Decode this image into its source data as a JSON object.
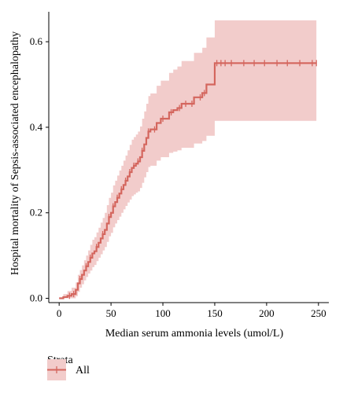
{
  "chart_data": {
    "type": "step",
    "title": "",
    "xlabel": "Median serum ammonia levels (umol/L)",
    "ylabel": "Hospital mortality of Sepsis-associated encephalopathy",
    "xlim": [
      -10,
      260
    ],
    "ylim": [
      -0.01,
      0.67
    ],
    "x_ticks": [
      0,
      50,
      100,
      150,
      200,
      250
    ],
    "x_tick_labels": [
      "0",
      "50",
      "100",
      "150",
      "200",
      "250"
    ],
    "y_ticks": [
      0.0,
      0.2,
      0.4,
      0.6
    ],
    "y_tick_labels": [
      "0.0",
      "0.2",
      "0.4",
      "0.6"
    ],
    "grid": false,
    "legend": {
      "title": "Strata",
      "placement": "bottom-left",
      "entries": [
        "All"
      ]
    },
    "colors": {
      "line": "#d4665e",
      "band": "#f2cccb"
    },
    "series": [
      {
        "name": "All",
        "x": [
          0,
          4,
          8,
          12,
          16,
          18,
          20,
          22,
          24,
          26,
          28,
          30,
          32,
          34,
          36,
          38,
          40,
          42,
          44,
          46,
          48,
          50,
          52,
          54,
          56,
          58,
          60,
          62,
          64,
          66,
          68,
          70,
          72,
          74,
          76,
          78,
          80,
          82,
          84,
          86,
          88,
          90,
          94,
          98,
          102,
          106,
          110,
          114,
          118,
          122,
          126,
          130,
          134,
          138,
          142,
          146,
          150,
          248
        ],
        "y": [
          0.0,
          0.003,
          0.006,
          0.01,
          0.02,
          0.035,
          0.045,
          0.055,
          0.065,
          0.075,
          0.085,
          0.095,
          0.105,
          0.11,
          0.12,
          0.13,
          0.14,
          0.15,
          0.16,
          0.175,
          0.19,
          0.2,
          0.215,
          0.225,
          0.235,
          0.245,
          0.255,
          0.265,
          0.275,
          0.285,
          0.295,
          0.305,
          0.31,
          0.315,
          0.32,
          0.33,
          0.345,
          0.36,
          0.375,
          0.39,
          0.395,
          0.395,
          0.41,
          0.42,
          0.42,
          0.435,
          0.44,
          0.445,
          0.455,
          0.455,
          0.455,
          0.47,
          0.47,
          0.48,
          0.5,
          0.5,
          0.55,
          0.55
        ],
        "lower": [
          0.0,
          0.0,
          0.0,
          0.0,
          0.005,
          0.015,
          0.025,
          0.033,
          0.042,
          0.05,
          0.058,
          0.065,
          0.073,
          0.078,
          0.087,
          0.095,
          0.103,
          0.112,
          0.12,
          0.132,
          0.145,
          0.153,
          0.166,
          0.175,
          0.183,
          0.191,
          0.2,
          0.208,
          0.216,
          0.224,
          0.231,
          0.239,
          0.243,
          0.247,
          0.25,
          0.258,
          0.27,
          0.283,
          0.295,
          0.307,
          0.31,
          0.31,
          0.322,
          0.33,
          0.33,
          0.34,
          0.343,
          0.346,
          0.352,
          0.352,
          0.352,
          0.362,
          0.362,
          0.368,
          0.38,
          0.38,
          0.415,
          0.415
        ],
        "upper": [
          0.003,
          0.01,
          0.017,
          0.025,
          0.037,
          0.055,
          0.066,
          0.077,
          0.089,
          0.1,
          0.112,
          0.125,
          0.137,
          0.143,
          0.154,
          0.165,
          0.177,
          0.188,
          0.2,
          0.218,
          0.235,
          0.247,
          0.264,
          0.275,
          0.287,
          0.299,
          0.31,
          0.322,
          0.334,
          0.346,
          0.359,
          0.371,
          0.377,
          0.383,
          0.39,
          0.402,
          0.42,
          0.437,
          0.455,
          0.473,
          0.479,
          0.479,
          0.497,
          0.509,
          0.509,
          0.527,
          0.535,
          0.542,
          0.555,
          0.555,
          0.555,
          0.574,
          0.574,
          0.586,
          0.61,
          0.61,
          0.65,
          0.65
        ]
      }
    ],
    "censor_marks": [
      10,
      14,
      20,
      26,
      30,
      36,
      42,
      48,
      52,
      56,
      60,
      64,
      68,
      72,
      76,
      80,
      86,
      92,
      100,
      108,
      116,
      122,
      128,
      136,
      140,
      152,
      156,
      160,
      166,
      178,
      188,
      198,
      210,
      220,
      232,
      244,
      248
    ]
  }
}
